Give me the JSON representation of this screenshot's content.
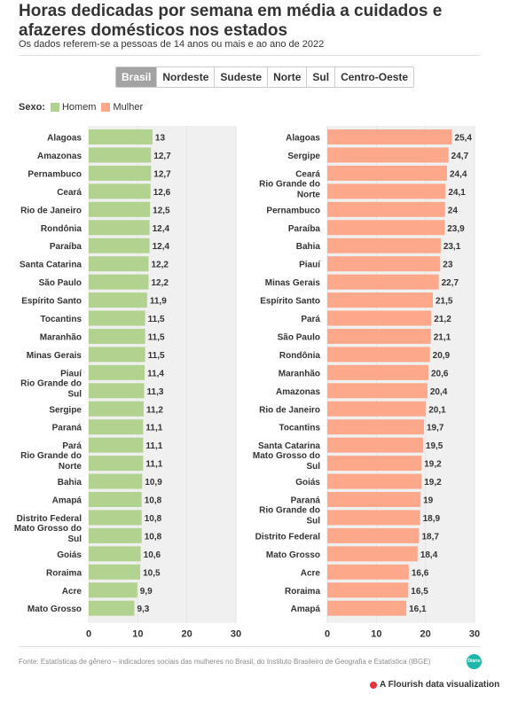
{
  "title": "Horas dedicadas por semana em média a cuidados e afazeres domésticos nos estados",
  "subtitle": "Os dados referem-se a pessoas de 14 anos ou mais e ao ano de 2022",
  "tabs": [
    {
      "label": "Brasil",
      "active": true
    },
    {
      "label": "Nordeste",
      "active": false
    },
    {
      "label": "Sudeste",
      "active": false
    },
    {
      "label": "Norte",
      "active": false
    },
    {
      "label": "Sul",
      "active": false
    },
    {
      "label": "Centro-Oeste",
      "active": false
    }
  ],
  "legend": {
    "label": "Sexo:",
    "items": [
      {
        "name": "Homem",
        "color": "#b2d38f"
      },
      {
        "name": "Mulher",
        "color": "#fda88a"
      }
    ]
  },
  "chart_data": [
    {
      "type": "bar",
      "orientation": "horizontal",
      "series_name": "Homem",
      "color": "#b2d38f",
      "xlim": [
        0,
        30
      ],
      "ticks": [
        "0",
        "10",
        "20",
        "30"
      ],
      "categories": [
        "Alagoas",
        "Amazonas",
        "Pernambuco",
        "Ceará",
        "Rio de Janeiro",
        "Rondônia",
        "Paraíba",
        "Santa Catarina",
        "São Paulo",
        "Espírito Santo",
        "Tocantins",
        "Maranhão",
        "Minas Gerais",
        "Piauí",
        "Rio Grande do Sul",
        "Sergipe",
        "Paraná",
        "Pará",
        "Rio Grande do Norte",
        "Bahia",
        "Amapá",
        "Distrito Federal",
        "Mato Grosso do Sul",
        "Goiás",
        "Roraima",
        "Acre",
        "Mato Grosso"
      ],
      "values": [
        13,
        12.7,
        12.7,
        12.6,
        12.5,
        12.4,
        12.4,
        12.2,
        12.2,
        11.9,
        11.5,
        11.5,
        11.5,
        11.4,
        11.3,
        11.2,
        11.1,
        11.1,
        11.1,
        10.9,
        10.8,
        10.8,
        10.8,
        10.6,
        10.5,
        9.9,
        9.3
      ],
      "value_labels": [
        "13",
        "12,7",
        "12,7",
        "12,6",
        "12,5",
        "12,4",
        "12,4",
        "12,2",
        "12,2",
        "11,9",
        "11,5",
        "11,5",
        "11,5",
        "11,4",
        "11,3",
        "11,2",
        "11,1",
        "11,1",
        "11,1",
        "10,9",
        "10,8",
        "10,8",
        "10,8",
        "10,6",
        "10,5",
        "9,9",
        "9,3"
      ]
    },
    {
      "type": "bar",
      "orientation": "horizontal",
      "series_name": "Mulher",
      "color": "#fda88a",
      "xlim": [
        0,
        30
      ],
      "ticks": [
        "0",
        "10",
        "20",
        "30"
      ],
      "categories": [
        "Alagoas",
        "Sergipe",
        "Ceará",
        "Rio Grande do Norte",
        "Pernambuco",
        "Paraíba",
        "Bahia",
        "Piauí",
        "Minas Gerais",
        "Espírito Santo",
        "Pará",
        "São Paulo",
        "Rondônia",
        "Maranhão",
        "Amazonas",
        "Rio de Janeiro",
        "Tocantins",
        "Santa Catarina",
        "Mato Grosso do Sul",
        "Goiás",
        "Paraná",
        "Rio Grande do Sul",
        "Distrito Federal",
        "Mato Grosso",
        "Acre",
        "Roraima",
        "Amapá"
      ],
      "values": [
        25.4,
        24.7,
        24.4,
        24.1,
        24,
        23.9,
        23.1,
        23,
        22.7,
        21.5,
        21.2,
        21.1,
        20.9,
        20.6,
        20.4,
        20.1,
        19.7,
        19.5,
        19.2,
        19.2,
        19,
        18.9,
        18.7,
        18.4,
        16.6,
        16.5,
        16.1
      ],
      "value_labels": [
        "25,4",
        "24,7",
        "24,4",
        "24,1",
        "24",
        "23,9",
        "23,1",
        "23",
        "22,7",
        "21,5",
        "21,2",
        "21,1",
        "20,9",
        "20,6",
        "20,4",
        "20,1",
        "19,7",
        "19,5",
        "19,2",
        "19,2",
        "19",
        "18,9",
        "18,7",
        "18,4",
        "16,6",
        "16,5",
        "16,1"
      ]
    }
  ],
  "footer": {
    "source": "Fonte: Estatísticas de gênero – indicadores sociais das mulheres no Brasil, do Instituto Brasileiro de Geografia e Estatística (IBGE)",
    "badge": "Diário",
    "credit": "A Flourish data visualization"
  }
}
